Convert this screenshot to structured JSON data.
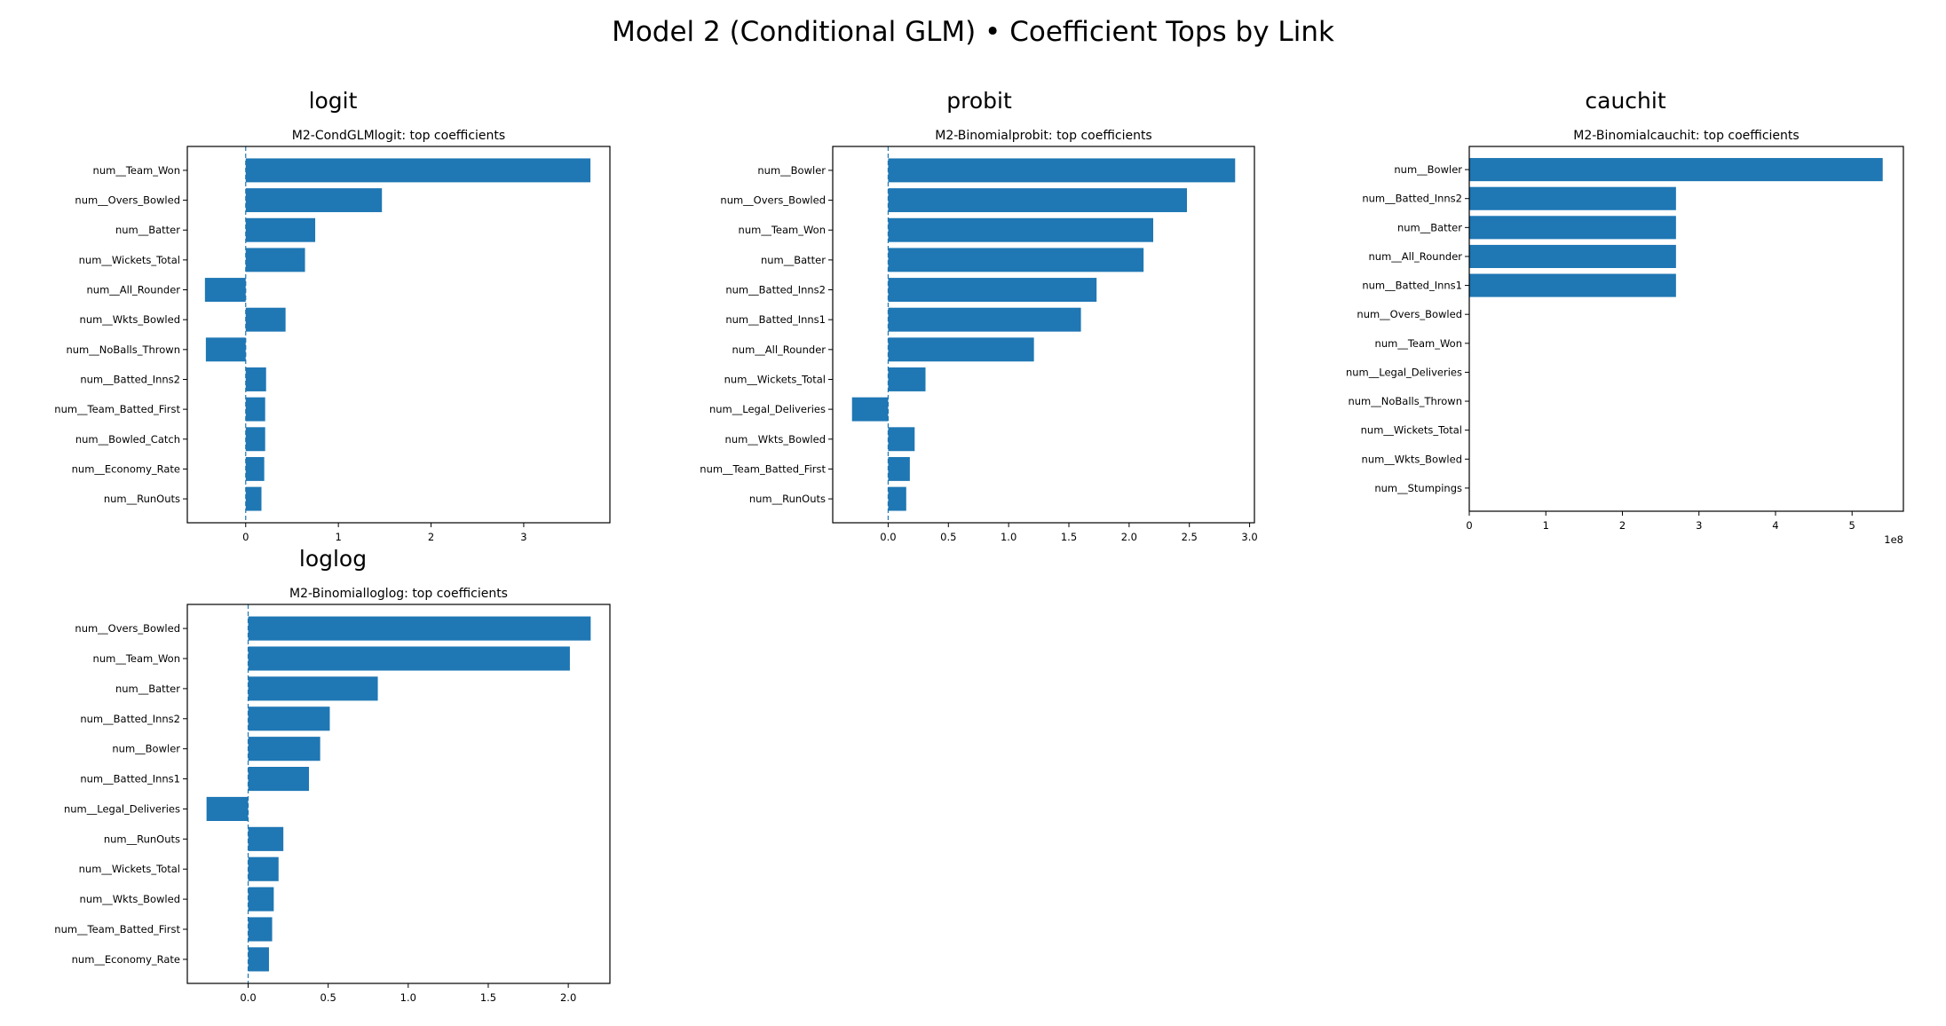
{
  "figure": {
    "title": "Model 2 (Conditional GLM) • Coefficient Tops by Link"
  },
  "chart_data": [
    {
      "type": "bar",
      "orientation": "horizontal",
      "section_label": "logit",
      "title": "M2-CondGLMlogit: top coefficients",
      "categories": [
        "num__Team_Won",
        "num__Overs_Bowled",
        "num__Batter",
        "num__Wickets_Total",
        "num__All_Rounder",
        "num__Wkts_Bowled",
        "num__NoBalls_Thrown",
        "num__Batted_Inns2",
        "num__Team_Batted_First",
        "num__Bowled_Catch",
        "num__Economy_Rate",
        "num__RunOuts"
      ],
      "values": [
        3.72,
        1.47,
        0.75,
        0.64,
        -0.44,
        0.43,
        -0.43,
        0.22,
        0.21,
        0.21,
        0.2,
        0.17
      ],
      "xlim": [
        -0.63,
        3.93
      ],
      "xticks": [
        0,
        1,
        2,
        3
      ],
      "xtick_labels": [
        "0",
        "1",
        "2",
        "3"
      ],
      "axis_offset_label": "",
      "zero_line": true,
      "grid": false,
      "color": "#1f77b4"
    },
    {
      "type": "bar",
      "orientation": "horizontal",
      "section_label": "probit",
      "title": "M2-Binomialprobit: top coefficients",
      "categories": [
        "num__Bowler",
        "num__Overs_Bowled",
        "num__Team_Won",
        "num__Batter",
        "num__Batted_Inns2",
        "num__Batted_Inns1",
        "num__All_Rounder",
        "num__Wickets_Total",
        "num__Legal_Deliveries",
        "num__Wkts_Bowled",
        "num__Team_Batted_First",
        "num__RunOuts"
      ],
      "values": [
        2.88,
        2.48,
        2.2,
        2.12,
        1.73,
        1.6,
        1.21,
        0.31,
        -0.3,
        0.22,
        0.18,
        0.15
      ],
      "xlim": [
        -0.46,
        3.04
      ],
      "xticks": [
        0,
        0.5,
        1,
        1.5,
        2,
        2.5,
        3
      ],
      "xtick_labels": [
        "0.0",
        "0.5",
        "1.0",
        "1.5",
        "2.0",
        "2.5",
        "3.0"
      ],
      "axis_offset_label": "",
      "zero_line": true,
      "grid": false,
      "color": "#1f77b4"
    },
    {
      "type": "bar",
      "orientation": "horizontal",
      "section_label": "cauchit",
      "title": "M2-Binomialcauchit: top coefficients",
      "categories": [
        "num__Bowler",
        "num__Batted_Inns2",
        "num__Batter",
        "num__All_Rounder",
        "num__Batted_Inns1",
        "num__Overs_Bowled",
        "num__Team_Won",
        "num__Legal_Deliveries",
        "num__NoBalls_Thrown",
        "num__Wickets_Total",
        "num__Wkts_Bowled",
        "num__Stumpings"
      ],
      "values": [
        540000000,
        270000000,
        270000000,
        270000000,
        270000000,
        0,
        0,
        0,
        0,
        0,
        0,
        0
      ],
      "xlim": [
        0,
        567000000
      ],
      "xticks": [
        0,
        100000000,
        200000000,
        300000000,
        400000000,
        500000000
      ],
      "xtick_labels": [
        "0",
        "1",
        "2",
        "3",
        "4",
        "5"
      ],
      "axis_offset_label": "1e8",
      "zero_line": false,
      "grid": false,
      "color": "#1f77b4"
    },
    {
      "type": "bar",
      "orientation": "horizontal",
      "section_label": "loglog",
      "title": "M2-Binomialloglog: top coefficients",
      "categories": [
        "num__Overs_Bowled",
        "num__Team_Won",
        "num__Batter",
        "num__Batted_Inns2",
        "num__Bowler",
        "num__Batted_Inns1",
        "num__Legal_Deliveries",
        "num__RunOuts",
        "num__Wickets_Total",
        "num__Wkts_Bowled",
        "num__Team_Batted_First",
        "num__Economy_Rate"
      ],
      "values": [
        2.14,
        2.01,
        0.81,
        0.51,
        0.45,
        0.38,
        -0.26,
        0.22,
        0.19,
        0.16,
        0.15,
        0.13
      ],
      "xlim": [
        -0.38,
        2.26
      ],
      "xticks": [
        0,
        0.5,
        1,
        1.5,
        2
      ],
      "xtick_labels": [
        "0.0",
        "0.5",
        "1.0",
        "1.5",
        "2.0"
      ],
      "axis_offset_label": "",
      "zero_line": true,
      "grid": false,
      "color": "#1f77b4"
    }
  ]
}
